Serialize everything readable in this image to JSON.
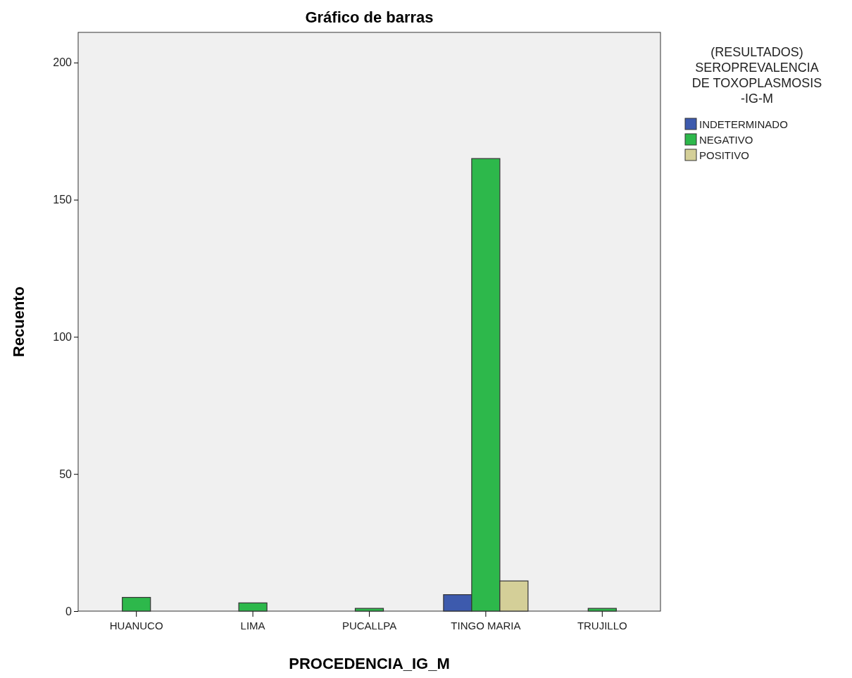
{
  "chart_data": {
    "type": "bar",
    "title": "Gráfico de barras",
    "xlabel": "PROCEDENCIA_IG_M",
    "ylabel": "Recuento",
    "legend_title": "(RESULTADOS) SEROPREVALENCIA DE TOXOPLASMOSIS -IG-M",
    "categories": [
      "HUANUCO",
      "LIMA",
      "PUCALLPA",
      "TINGO MARIA",
      "TRUJILLO"
    ],
    "series": [
      {
        "name": "INDETERMINADO",
        "color": "#3d5aad",
        "values": [
          null,
          null,
          null,
          6,
          null
        ]
      },
      {
        "name": "NEGATIVO",
        "color": "#2db84b",
        "values": [
          5,
          3,
          1,
          165,
          1
        ]
      },
      {
        "name": "POSITIVO",
        "color": "#d4cf98",
        "values": [
          null,
          null,
          null,
          11,
          null
        ]
      }
    ],
    "ylim": [
      0,
      211
    ],
    "yticks": [
      0,
      50,
      100,
      150,
      200
    ],
    "grid": false,
    "legend": "right"
  }
}
